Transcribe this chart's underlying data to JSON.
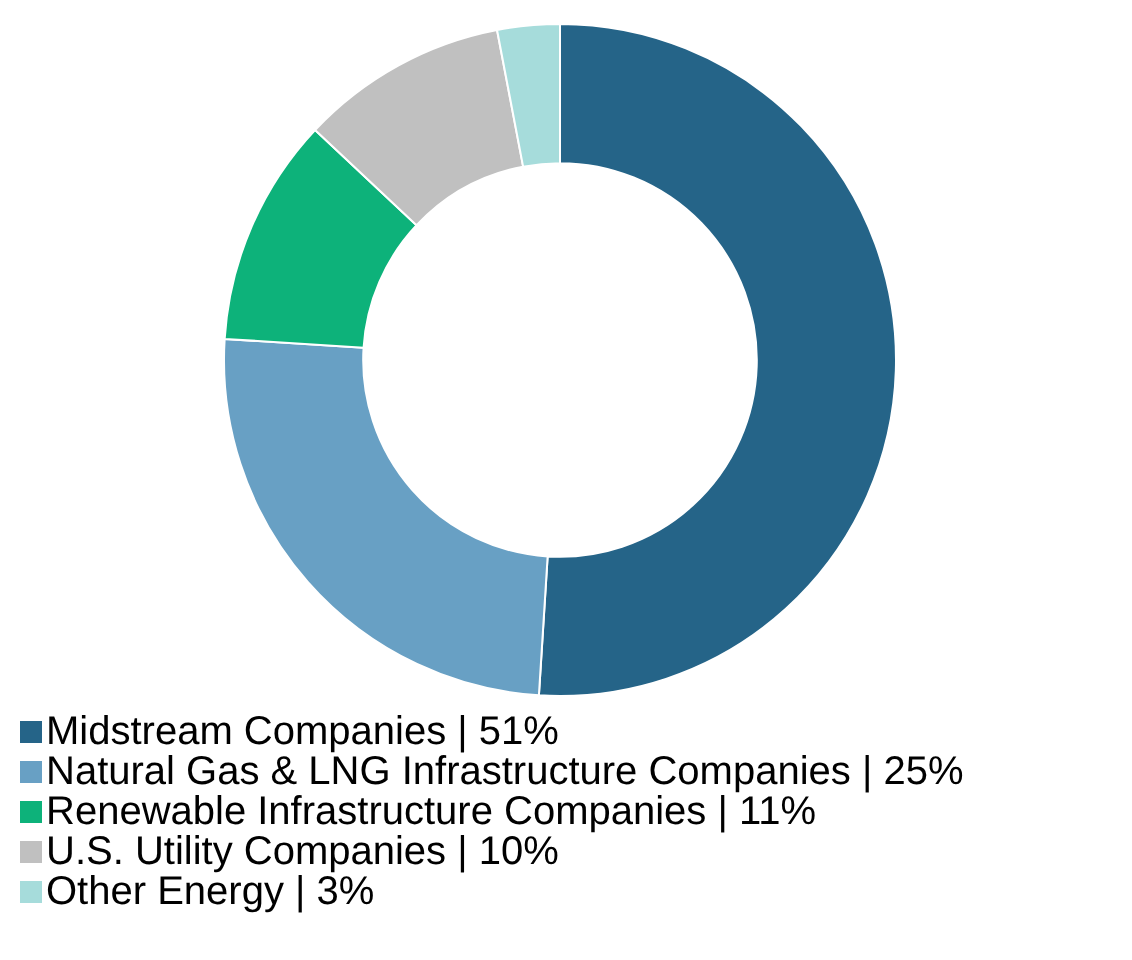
{
  "chart_data": {
    "type": "donut",
    "categories": [
      "Midstream Companies | 51%",
      "Natural Gas & LNG Infrastructure Companies | 25%",
      "Renewable Infrastructure Companies | 11%",
      "U.S. Utility Companies | 10%",
      "Other Energy | 3%"
    ],
    "values": [
      51,
      25,
      11,
      10,
      3
    ],
    "colors": [
      "#256488",
      "#68a0c4",
      "#0db27a",
      "#c0c0c0",
      "#a6dcdb"
    ],
    "legend": "bottom left"
  }
}
